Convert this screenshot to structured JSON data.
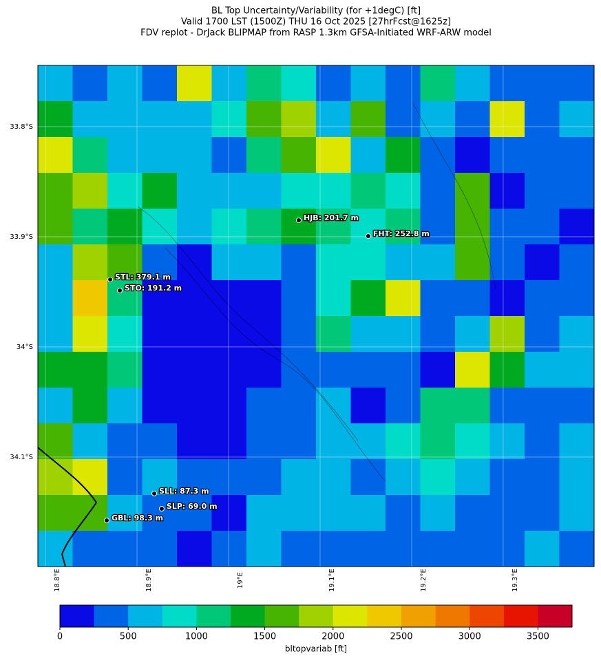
{
  "title": [
    "BL Top Uncertainty/Variability (for +1degC) [ft]",
    "Valid 1700 LST (1500Z) THU 16 Oct 2025 [27hrFcst@1625z]",
    "FDV replot - DrJack BLIPMAP from RASP 1.3km GFSA-Initiated WRF-ARW model"
  ],
  "map": {
    "lonlim": [
      18.7917,
      19.3993
    ],
    "latlim": [
      -34.1994,
      -33.7444
    ],
    "lonticks": [
      {
        "value": 18.8,
        "label": "18.8°E"
      },
      {
        "value": 18.9,
        "label": "18.9°E"
      },
      {
        "value": 19.0,
        "label": "19°E"
      },
      {
        "value": 19.1,
        "label": "19.1°E"
      },
      {
        "value": 19.2,
        "label": "19.2°E"
      },
      {
        "value": 19.3,
        "label": "19.3°E"
      }
    ],
    "latticks": [
      {
        "value": -33.8,
        "label": "33.8°S"
      },
      {
        "value": -33.9,
        "label": "33.9°S"
      },
      {
        "value": -34.0,
        "label": "34°S"
      },
      {
        "value": -34.1,
        "label": "34.1°S"
      }
    ],
    "grid": [
      [
        600,
        400,
        600,
        300,
        2000,
        600,
        1000,
        800,
        300,
        600,
        300,
        1200,
        500,
        300,
        400,
        300
      ],
      [
        1300,
        700,
        600,
        500,
        700,
        800,
        1500,
        1800,
        600,
        1700,
        300,
        500,
        300,
        2200,
        300,
        700
      ],
      [
        2200,
        1000,
        500,
        600,
        500,
        400,
        1200,
        1600,
        2000,
        700,
        1400,
        300,
        200,
        300,
        300,
        300
      ],
      [
        1500,
        1800,
        900,
        1300,
        600,
        700,
        700,
        900,
        800,
        1000,
        800,
        300,
        1500,
        200,
        400,
        300
      ],
      [
        1600,
        1200,
        1300,
        900,
        600,
        900,
        1000,
        1400,
        1000,
        800,
        1200,
        400,
        1600,
        400,
        300,
        200
      ],
      [
        600,
        1800,
        1700,
        400,
        200,
        600,
        500,
        300,
        800,
        900,
        700,
        600,
        1500,
        300,
        200,
        300
      ],
      [
        500,
        2300,
        1200,
        200,
        200,
        200,
        200,
        300,
        800,
        1300,
        2200,
        400,
        400,
        200,
        300,
        300
      ],
      [
        600,
        2000,
        800,
        200,
        200,
        200,
        200,
        400,
        1200,
        700,
        700,
        300,
        700,
        1800,
        300,
        600
      ],
      [
        1400,
        1300,
        1200,
        200,
        200,
        200,
        200,
        300,
        400,
        300,
        400,
        200,
        2000,
        1300,
        600,
        700
      ],
      [
        500,
        1300,
        500,
        200,
        200,
        200,
        300,
        300,
        500,
        200,
        300,
        1100,
        1200,
        300,
        300,
        400
      ],
      [
        1600,
        600,
        400,
        300,
        200,
        200,
        300,
        400,
        500,
        500,
        800,
        1100,
        800,
        600,
        400,
        600
      ],
      [
        1800,
        2000,
        400,
        500,
        300,
        400,
        300,
        500,
        600,
        400,
        500,
        800,
        500,
        400,
        300,
        500
      ],
      [
        1500,
        1600,
        500,
        400,
        300,
        200,
        500,
        600,
        700,
        500,
        300,
        600,
        400,
        300,
        400,
        500
      ],
      [
        700,
        300,
        300,
        300,
        200,
        300,
        500,
        400,
        300,
        300,
        300,
        400,
        300,
        300,
        600,
        300
      ]
    ],
    "stations": [
      {
        "label": "HJB: 201.7 m",
        "lon": 19.0767,
        "lat": -33.885
      },
      {
        "label": "FHT: 252.8 m",
        "lon": 19.1526,
        "lat": -33.8994
      },
      {
        "label": "STL: 379.1 m",
        "lon": 18.8707,
        "lat": -33.9388
      },
      {
        "label": "STO: 191.2 m",
        "lon": 18.8812,
        "lat": -33.9488
      },
      {
        "label": "SLL: 87.3 m",
        "lon": 18.9188,
        "lat": -34.1331
      },
      {
        "label": "SLP: 69.0 m",
        "lon": 18.927,
        "lat": -34.1469
      },
      {
        "label": "GBL: 98.3 m",
        "lon": 18.8669,
        "lat": -34.1575
      }
    ]
  },
  "colorbar": {
    "label": "bltopvariab [ft]",
    "lim": [
      0,
      3750
    ],
    "ticks": [
      0,
      500,
      1000,
      1500,
      2000,
      2500,
      3000,
      3500
    ],
    "colors": [
      "#0a0ae6",
      "#0064e6",
      "#00b4e6",
      "#00dcc8",
      "#00c878",
      "#00aa20",
      "#46b400",
      "#a0d200",
      "#dce600",
      "#f0c800",
      "#f0a000",
      "#ee7800",
      "#ee4600",
      "#e61400",
      "#c80028"
    ]
  }
}
